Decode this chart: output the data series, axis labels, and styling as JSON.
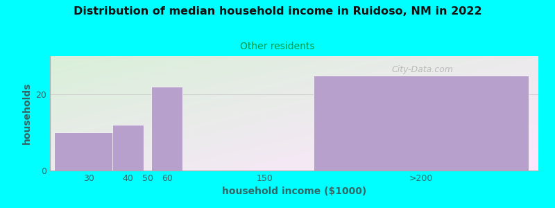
{
  "title": "Distribution of median household income in Ruidoso, NM in 2022",
  "subtitle": "Other residents",
  "xlabel": "household income ($1000)",
  "ylabel": "households",
  "bg_color": "#00FFFF",
  "bar_color": "#b8a0cc",
  "bar_edge_color": "#ffffff",
  "title_color": "#111111",
  "subtitle_color": "#009944",
  "axis_label_color": "#336666",
  "tick_label_color": "#336666",
  "watermark": "City-Data.com",
  "x_positions": [
    1.0,
    2.0,
    2.5,
    3.0,
    5.5,
    9.5
  ],
  "bar_widths": [
    1.8,
    0.8,
    0.4,
    0.8,
    0.4,
    5.5
  ],
  "values": [
    10,
    12,
    0,
    22,
    0,
    25
  ],
  "labels": [
    "30",
    "40",
    "50",
    "60",
    "150",
    ">200"
  ],
  "ylim": [
    0,
    30
  ],
  "ytick_positions": [
    0,
    20
  ],
  "ytick_labels": [
    "0",
    "20"
  ],
  "xmin": 0.0,
  "xmax": 12.5
}
